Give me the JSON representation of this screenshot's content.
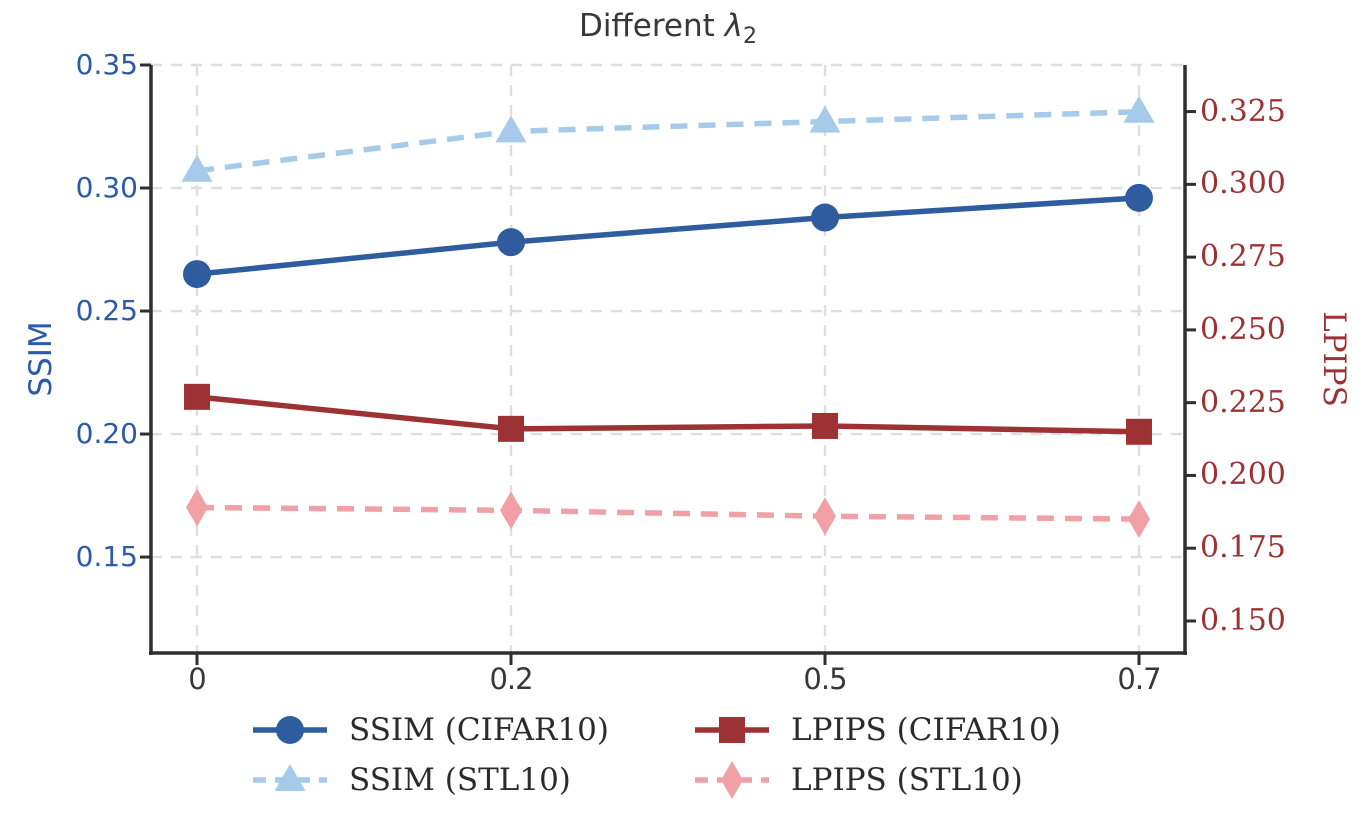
{
  "style": {
    "grid_color": "#dedede",
    "spine_color": "#2f2f2f",
    "text_color": "#383838",
    "left_axis_text_color": "#2b5ba8",
    "right_axis_text_color": "#9d3133",
    "legend_text_color": "#2b2b2b"
  },
  "chart_data": {
    "type": "line",
    "title": "Different λ₂",
    "title_parts": {
      "prefix": "Different ",
      "symbol": "λ",
      "subscript": "2"
    },
    "grid": true,
    "x": {
      "tick_labels": [
        "0",
        "0.2",
        "0.5",
        "0.7"
      ],
      "values": [
        0,
        0.2,
        0.5,
        0.7
      ]
    },
    "axes": {
      "left": {
        "label": "SSIM",
        "color": "#2b5ba8",
        "tick_labels": [
          "0.35",
          "0.30",
          "0.25",
          "0.20",
          "0.15"
        ],
        "tick_values": [
          0.35,
          0.3,
          0.25,
          0.2,
          0.15
        ],
        "range": [
          0.111,
          0.35
        ]
      },
      "right": {
        "label": "LPIPS",
        "color": "#9d3133",
        "tick_labels": [
          "0.325",
          "0.300",
          "0.275",
          "0.250",
          "0.225",
          "0.200",
          "0.175",
          "0.150"
        ],
        "tick_values": [
          0.325,
          0.3,
          0.275,
          0.25,
          0.225,
          0.2,
          0.175,
          0.15
        ],
        "range": [
          0.139,
          0.341
        ]
      }
    },
    "series": [
      {
        "name": "SSIM (CIFAR10)",
        "axis": "left",
        "color": "#2e5c9e",
        "marker": "circle",
        "line_style": "solid",
        "values": [
          0.265,
          0.278,
          0.288,
          0.296
        ]
      },
      {
        "name": "SSIM (STL10)",
        "axis": "left",
        "color": "#a6cbea",
        "marker": "triangle",
        "line_style": "dashed",
        "values": [
          0.307,
          0.323,
          0.327,
          0.331
        ]
      },
      {
        "name": "LPIPS (CIFAR10)",
        "axis": "right",
        "color": "#9d3234",
        "marker": "square",
        "line_style": "solid",
        "values": [
          0.227,
          0.216,
          0.217,
          0.215
        ]
      },
      {
        "name": "LPIPS (STL10)",
        "axis": "right",
        "color": "#f1a0a6",
        "marker": "diamond",
        "line_style": "dashed",
        "values": [
          0.189,
          0.188,
          0.186,
          0.185
        ]
      }
    ],
    "legend": {
      "position": "below-chart",
      "columns": 2,
      "column_order": [
        [
          "SSIM (CIFAR10)",
          "SSIM (STL10)"
        ],
        [
          "LPIPS (CIFAR10)",
          "LPIPS (STL10)"
        ]
      ]
    }
  }
}
